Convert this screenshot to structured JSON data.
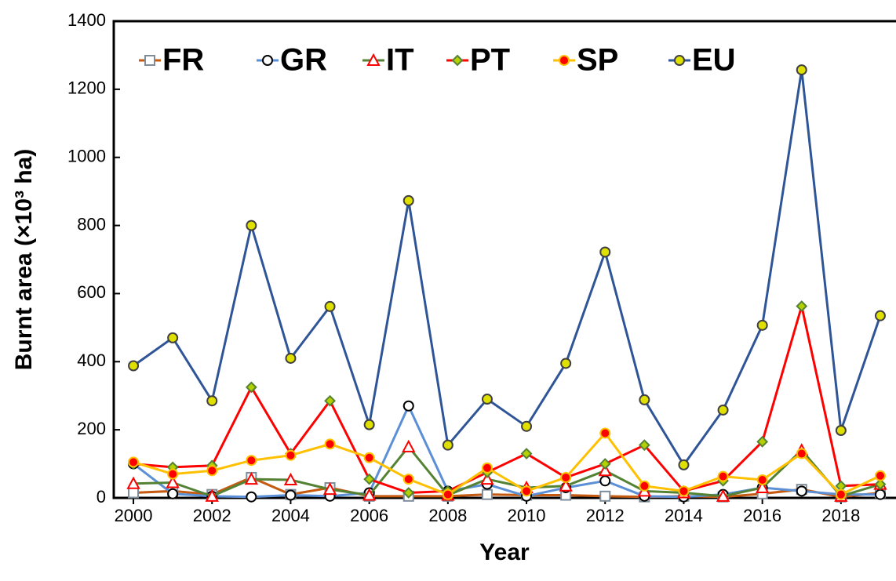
{
  "chart_data": {
    "type": "line",
    "xlabel": "Year",
    "ylabel": "Burnt area (×10³ ha)",
    "x": [
      2000,
      2001,
      2002,
      2003,
      2004,
      2005,
      2006,
      2007,
      2008,
      2009,
      2010,
      2011,
      2012,
      2013,
      2014,
      2015,
      2016,
      2017,
      2018,
      2019
    ],
    "xlim": [
      1999.5,
      2019.4
    ],
    "xticks": [
      2000,
      2002,
      2004,
      2006,
      2008,
      2010,
      2012,
      2014,
      2016,
      2018
    ],
    "ylim": [
      0,
      1400
    ],
    "yticks": [
      0,
      200,
      400,
      600,
      800,
      1000,
      1200,
      1400
    ],
    "grid": false,
    "legend": "top-left",
    "series": [
      {
        "name": "FR",
        "color": "#c55a11",
        "marker": "square",
        "marker_fill": "#ffffff",
        "marker_edge": "#7f8c9a",
        "values": [
          15,
          20,
          10,
          60,
          10,
          30,
          5,
          5,
          5,
          10,
          8,
          8,
          5,
          3,
          5,
          3,
          12,
          25,
          3,
          15
        ]
      },
      {
        "name": "GR",
        "color": "#5b8fd6",
        "marker": "circle",
        "marker_fill": "#ffffff",
        "marker_edge": "#000000",
        "values": [
          100,
          12,
          5,
          3,
          8,
          5,
          15,
          270,
          20,
          40,
          5,
          30,
          50,
          5,
          3,
          10,
          30,
          20,
          10,
          10
        ]
      },
      {
        "name": "IT",
        "color": "#548235",
        "marker": "triangle",
        "marker_fill": "#ffffff",
        "marker_edge": "#ff0000",
        "values": [
          42,
          45,
          5,
          55,
          53,
          25,
          8,
          150,
          8,
          55,
          30,
          35,
          80,
          20,
          15,
          5,
          30,
          140,
          5,
          40
        ]
      },
      {
        "name": "PT",
        "color": "#ff0000",
        "marker": "diamond",
        "marker_fill": "#b5d000",
        "marker_edge": "#548235",
        "values": [
          100,
          90,
          95,
          325,
          130,
          285,
          55,
          15,
          20,
          75,
          130,
          60,
          100,
          155,
          20,
          50,
          165,
          563,
          35,
          40
        ]
      },
      {
        "name": "SP",
        "color": "#ffc000",
        "marker": "circle",
        "marker_fill": "#ff0000",
        "marker_edge": "#ffc000",
        "values": [
          105,
          70,
          80,
          110,
          125,
          158,
          118,
          55,
          10,
          88,
          20,
          60,
          190,
          35,
          20,
          63,
          53,
          130,
          10,
          65
        ]
      },
      {
        "name": "EU",
        "color": "#2f5597",
        "marker": "circle",
        "marker_fill": "#e0e000",
        "marker_edge": "#404040",
        "values": [
          388,
          470,
          285,
          800,
          410,
          562,
          215,
          873,
          155,
          290,
          210,
          395,
          722,
          288,
          97,
          258,
          507,
          1257,
          198,
          535
        ]
      }
    ]
  }
}
